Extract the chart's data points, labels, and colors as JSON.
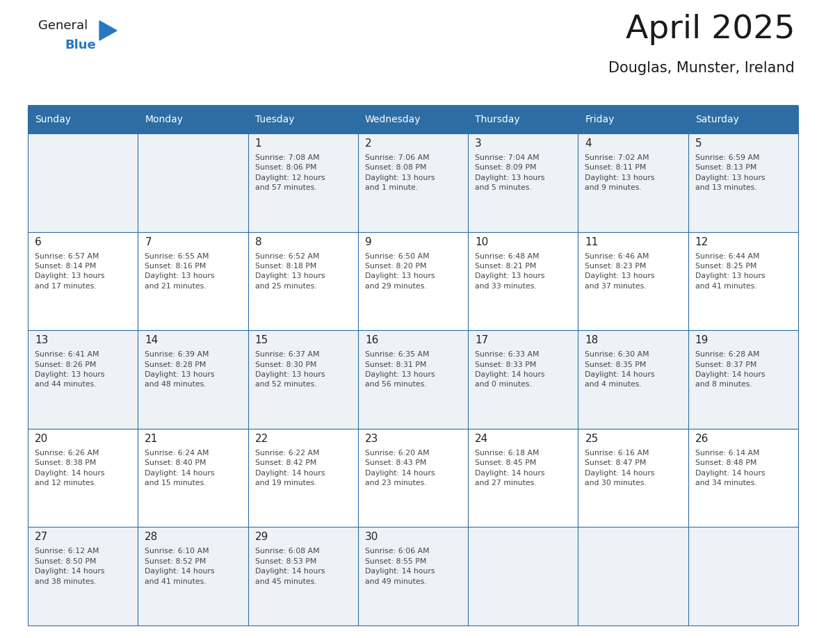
{
  "title": "April 2025",
  "subtitle": "Douglas, Munster, Ireland",
  "header_bg": "#2E6DA4",
  "header_text_color": "#FFFFFF",
  "row_bg_odd": "#EEF2F7",
  "row_bg_even": "#FFFFFF",
  "day_number_color": "#222222",
  "info_text_color": "#444444",
  "grid_line_color": "#2E6DA4",
  "days_of_week": [
    "Sunday",
    "Monday",
    "Tuesday",
    "Wednesday",
    "Thursday",
    "Friday",
    "Saturday"
  ],
  "weeks": [
    [
      {
        "day": "",
        "info": ""
      },
      {
        "day": "",
        "info": ""
      },
      {
        "day": "1",
        "info": "Sunrise: 7:08 AM\nSunset: 8:06 PM\nDaylight: 12 hours\nand 57 minutes."
      },
      {
        "day": "2",
        "info": "Sunrise: 7:06 AM\nSunset: 8:08 PM\nDaylight: 13 hours\nand 1 minute."
      },
      {
        "day": "3",
        "info": "Sunrise: 7:04 AM\nSunset: 8:09 PM\nDaylight: 13 hours\nand 5 minutes."
      },
      {
        "day": "4",
        "info": "Sunrise: 7:02 AM\nSunset: 8:11 PM\nDaylight: 13 hours\nand 9 minutes."
      },
      {
        "day": "5",
        "info": "Sunrise: 6:59 AM\nSunset: 8:13 PM\nDaylight: 13 hours\nand 13 minutes."
      }
    ],
    [
      {
        "day": "6",
        "info": "Sunrise: 6:57 AM\nSunset: 8:14 PM\nDaylight: 13 hours\nand 17 minutes."
      },
      {
        "day": "7",
        "info": "Sunrise: 6:55 AM\nSunset: 8:16 PM\nDaylight: 13 hours\nand 21 minutes."
      },
      {
        "day": "8",
        "info": "Sunrise: 6:52 AM\nSunset: 8:18 PM\nDaylight: 13 hours\nand 25 minutes."
      },
      {
        "day": "9",
        "info": "Sunrise: 6:50 AM\nSunset: 8:20 PM\nDaylight: 13 hours\nand 29 minutes."
      },
      {
        "day": "10",
        "info": "Sunrise: 6:48 AM\nSunset: 8:21 PM\nDaylight: 13 hours\nand 33 minutes."
      },
      {
        "day": "11",
        "info": "Sunrise: 6:46 AM\nSunset: 8:23 PM\nDaylight: 13 hours\nand 37 minutes."
      },
      {
        "day": "12",
        "info": "Sunrise: 6:44 AM\nSunset: 8:25 PM\nDaylight: 13 hours\nand 41 minutes."
      }
    ],
    [
      {
        "day": "13",
        "info": "Sunrise: 6:41 AM\nSunset: 8:26 PM\nDaylight: 13 hours\nand 44 minutes."
      },
      {
        "day": "14",
        "info": "Sunrise: 6:39 AM\nSunset: 8:28 PM\nDaylight: 13 hours\nand 48 minutes."
      },
      {
        "day": "15",
        "info": "Sunrise: 6:37 AM\nSunset: 8:30 PM\nDaylight: 13 hours\nand 52 minutes."
      },
      {
        "day": "16",
        "info": "Sunrise: 6:35 AM\nSunset: 8:31 PM\nDaylight: 13 hours\nand 56 minutes."
      },
      {
        "day": "17",
        "info": "Sunrise: 6:33 AM\nSunset: 8:33 PM\nDaylight: 14 hours\nand 0 minutes."
      },
      {
        "day": "18",
        "info": "Sunrise: 6:30 AM\nSunset: 8:35 PM\nDaylight: 14 hours\nand 4 minutes."
      },
      {
        "day": "19",
        "info": "Sunrise: 6:28 AM\nSunset: 8:37 PM\nDaylight: 14 hours\nand 8 minutes."
      }
    ],
    [
      {
        "day": "20",
        "info": "Sunrise: 6:26 AM\nSunset: 8:38 PM\nDaylight: 14 hours\nand 12 minutes."
      },
      {
        "day": "21",
        "info": "Sunrise: 6:24 AM\nSunset: 8:40 PM\nDaylight: 14 hours\nand 15 minutes."
      },
      {
        "day": "22",
        "info": "Sunrise: 6:22 AM\nSunset: 8:42 PM\nDaylight: 14 hours\nand 19 minutes."
      },
      {
        "day": "23",
        "info": "Sunrise: 6:20 AM\nSunset: 8:43 PM\nDaylight: 14 hours\nand 23 minutes."
      },
      {
        "day": "24",
        "info": "Sunrise: 6:18 AM\nSunset: 8:45 PM\nDaylight: 14 hours\nand 27 minutes."
      },
      {
        "day": "25",
        "info": "Sunrise: 6:16 AM\nSunset: 8:47 PM\nDaylight: 14 hours\nand 30 minutes."
      },
      {
        "day": "26",
        "info": "Sunrise: 6:14 AM\nSunset: 8:48 PM\nDaylight: 14 hours\nand 34 minutes."
      }
    ],
    [
      {
        "day": "27",
        "info": "Sunrise: 6:12 AM\nSunset: 8:50 PM\nDaylight: 14 hours\nand 38 minutes."
      },
      {
        "day": "28",
        "info": "Sunrise: 6:10 AM\nSunset: 8:52 PM\nDaylight: 14 hours\nand 41 minutes."
      },
      {
        "day": "29",
        "info": "Sunrise: 6:08 AM\nSunset: 8:53 PM\nDaylight: 14 hours\nand 45 minutes."
      },
      {
        "day": "30",
        "info": "Sunrise: 6:06 AM\nSunset: 8:55 PM\nDaylight: 14 hours\nand 49 minutes."
      },
      {
        "day": "",
        "info": ""
      },
      {
        "day": "",
        "info": ""
      },
      {
        "day": "",
        "info": ""
      }
    ]
  ],
  "logo_color_general": "#1a1a1a",
  "logo_color_blue": "#2878C0",
  "logo_triangle_color": "#2878C0",
  "title_color": "#1a1a1a",
  "subtitle_color": "#1a1a1a"
}
